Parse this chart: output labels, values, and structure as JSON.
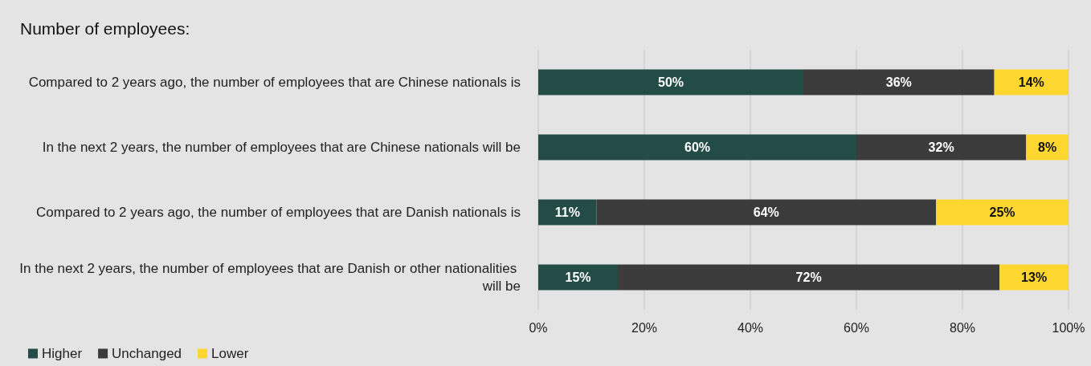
{
  "chart_data": {
    "type": "bar",
    "orientation": "horizontal",
    "stacked": true,
    "title": "Number of employees:",
    "categories": [
      "Compared to 2 years ago, the number of employees that are Chinese nationals is",
      "In the next 2 years, the number of employees that are Chinese nationals will be",
      "Compared to 2 years ago, the number of employees that are Danish nationals is",
      "In the next 2 years, the number of employees that are Danish or other nationalities will be"
    ],
    "series": [
      {
        "name": "Higher",
        "color": "#244c47",
        "values": [
          50,
          60,
          11,
          15
        ],
        "value_labels": [
          "50%",
          "60%",
          "11%",
          "15%"
        ]
      },
      {
        "name": "Unchanged",
        "color": "#3b3b3b",
        "values": [
          36,
          32,
          64,
          72
        ],
        "value_labels": [
          "36%",
          "32%",
          "64%",
          "72%"
        ]
      },
      {
        "name": "Lower",
        "color": "#fdd630",
        "values": [
          14,
          8,
          25,
          13
        ],
        "value_labels": [
          "14%",
          "8%",
          "25%",
          "13%"
        ]
      }
    ],
    "xlim": [
      0,
      100
    ],
    "xticks": [
      {
        "value": 0,
        "label": "0%"
      },
      {
        "value": 20,
        "label": "20%"
      },
      {
        "value": 40,
        "label": "40%"
      },
      {
        "value": 60,
        "label": "60%"
      },
      {
        "value": 80,
        "label": "80%"
      },
      {
        "value": 100,
        "label": "100%"
      }
    ],
    "grid": "x",
    "legend": "bottom left"
  }
}
